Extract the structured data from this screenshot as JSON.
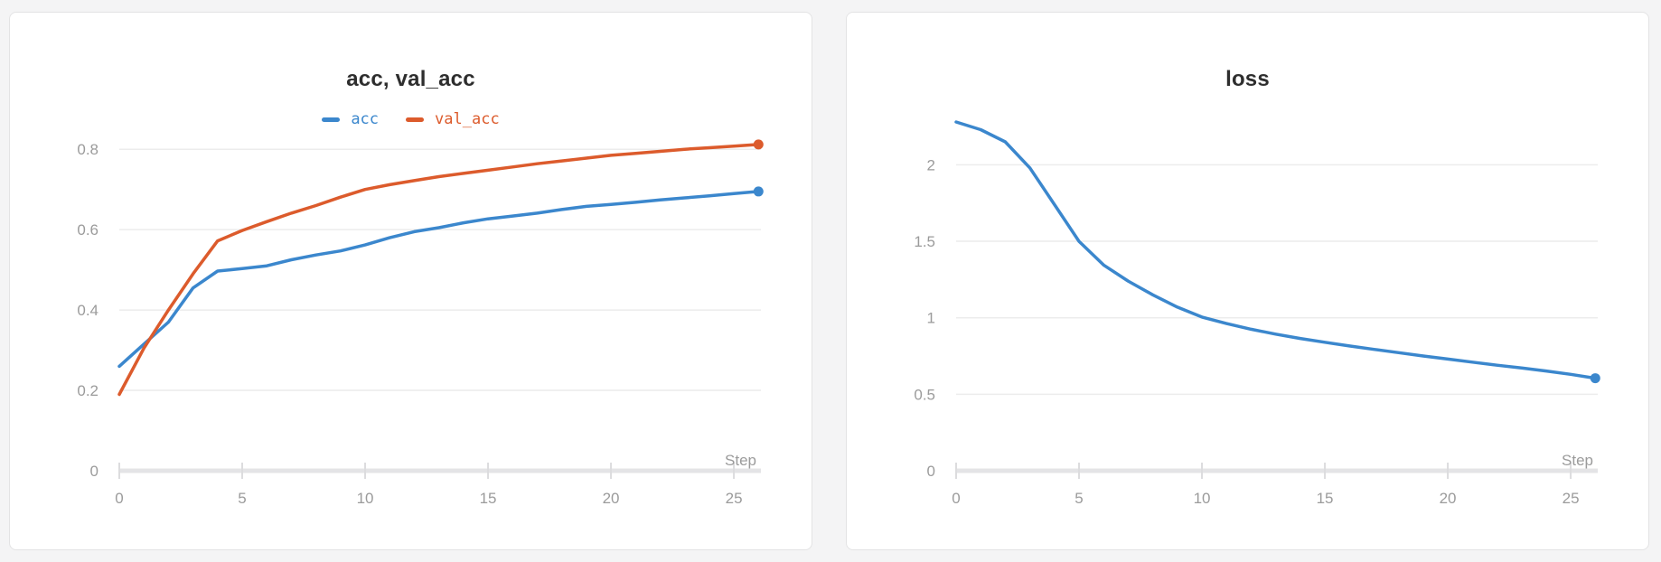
{
  "page": {
    "background_color": "#f4f4f5",
    "card_background": "#ffffff",
    "card_border_color": "#e3e3e4",
    "title_color": "#2e2e2e",
    "grid_color": "#ececec",
    "axis_bar_color": "#e4e4e6",
    "tick_mark_color": "#dcdcde",
    "tick_label_color": "#9b9b9b"
  },
  "chart_data": [
    {
      "type": "line",
      "title": "acc, val_acc",
      "xlabel": "Step",
      "ylabel": "",
      "legend_position": "top",
      "grid": true,
      "end_markers": true,
      "xlim": [
        0,
        26.1
      ],
      "ylim": [
        0,
        0.868
      ],
      "x_ticks": [
        0,
        5,
        10,
        15,
        20,
        25
      ],
      "x_tick_labels": [
        "0",
        "5",
        "10",
        "15",
        "20",
        "25"
      ],
      "y_ticks": [
        0,
        0.2,
        0.4,
        0.6,
        0.8
      ],
      "y_tick_labels": [
        "0",
        "0.2",
        "0.4",
        "0.6",
        "0.8"
      ],
      "x": [
        0,
        1,
        2,
        3,
        4,
        5,
        6,
        7,
        8,
        9,
        10,
        11,
        12,
        13,
        14,
        15,
        16,
        17,
        18,
        19,
        20,
        21,
        22,
        23,
        24,
        25,
        26
      ],
      "series": [
        {
          "name": "acc",
          "color": "#3b87cd",
          "values": [
            0.26,
            0.315,
            0.37,
            0.455,
            0.497,
            0.503,
            0.51,
            0.525,
            0.537,
            0.547,
            0.562,
            0.58,
            0.595,
            0.605,
            0.617,
            0.627,
            0.634,
            0.641,
            0.65,
            0.658,
            0.663,
            0.668,
            0.674,
            0.679,
            0.684,
            0.69,
            0.695
          ]
        },
        {
          "name": "val_acc",
          "color": "#dc5b2c",
          "values": [
            0.19,
            0.305,
            0.4,
            0.49,
            0.572,
            0.598,
            0.62,
            0.641,
            0.66,
            0.681,
            0.7,
            0.712,
            0.722,
            0.732,
            0.74,
            0.748,
            0.756,
            0.764,
            0.771,
            0.778,
            0.785,
            0.79,
            0.795,
            0.8,
            0.804,
            0.808,
            0.812
          ]
        }
      ]
    },
    {
      "type": "line",
      "title": "loss",
      "xlabel": "Step",
      "ylabel": "",
      "legend_position": "none",
      "grid": true,
      "end_markers": true,
      "xlim": [
        0,
        26.1
      ],
      "ylim": [
        0,
        2.28
      ],
      "x_ticks": [
        0,
        5,
        10,
        15,
        20,
        25
      ],
      "x_tick_labels": [
        "0",
        "5",
        "10",
        "15",
        "20",
        "25"
      ],
      "y_ticks": [
        0,
        0.5,
        1,
        1.5,
        2
      ],
      "y_tick_labels": [
        "0",
        "0.5",
        "1",
        "1.5",
        "2"
      ],
      "x": [
        0,
        1,
        2,
        3,
        4,
        5,
        6,
        7,
        8,
        9,
        10,
        11,
        12,
        13,
        14,
        15,
        16,
        17,
        18,
        19,
        20,
        21,
        22,
        23,
        24,
        25,
        26
      ],
      "series": [
        {
          "name": "loss",
          "color": "#3b87cd",
          "values": [
            2.28,
            2.23,
            2.15,
            1.98,
            1.74,
            1.5,
            1.345,
            1.24,
            1.15,
            1.07,
            1.005,
            0.962,
            0.925,
            0.893,
            0.865,
            0.84,
            0.816,
            0.793,
            0.772,
            0.75,
            0.73,
            0.71,
            0.69,
            0.672,
            0.652,
            0.63,
            0.605
          ]
        }
      ]
    }
  ]
}
